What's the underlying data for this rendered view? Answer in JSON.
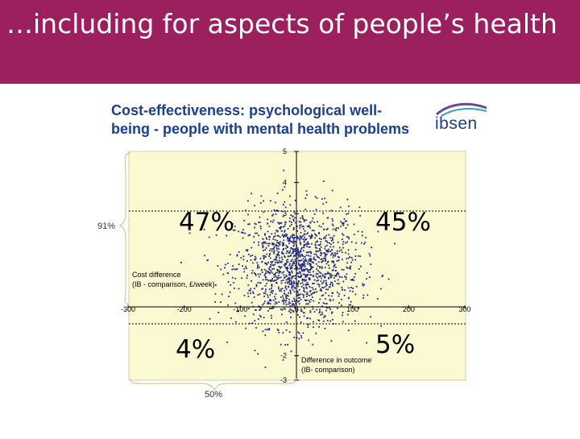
{
  "slide": {
    "title": "…including for aspects of people’s health"
  },
  "logo": {
    "text": "ibsen",
    "icon": "ibsen-swoosh-icon"
  },
  "colors": {
    "banner": "#9c1f5e",
    "plot_bg": "#fbf9d2",
    "points": "#1f2a8c",
    "title": "#1a3f8f"
  },
  "chart_data": {
    "type": "scatter",
    "title": "Cost-effectiveness: psychological well-being - people with mental health problems",
    "title_lines": [
      "Cost-effectiveness: psychological well-",
      "being - people with mental health problems"
    ],
    "xlabel_lines": [
      "Difference in outcome",
      "(IB- comparison)"
    ],
    "ylabel_lines": [
      "Cost difference",
      "(IB - comparison, £/week)"
    ],
    "x_ticks": [
      "-300",
      "-200",
      "-100",
      "0",
      "100",
      "200",
      "300"
    ],
    "y_ticks": [
      "5",
      "4",
      "3",
      "-2",
      "-3"
    ],
    "xlim": [
      -300,
      300
    ],
    "ylim": [
      -3,
      5
    ],
    "grid": false,
    "quadrant_labels": {
      "top_left": "47%",
      "top_right": "45%",
      "bottom_left": "4%",
      "bottom_right": "5%"
    },
    "brace_labels": {
      "left": "91%",
      "bottom": "50%"
    },
    "points_summary": {
      "n": 1500,
      "x_center": 0,
      "y_center": 1.3,
      "x_sd": 55,
      "y_sd": 0.95
    }
  }
}
